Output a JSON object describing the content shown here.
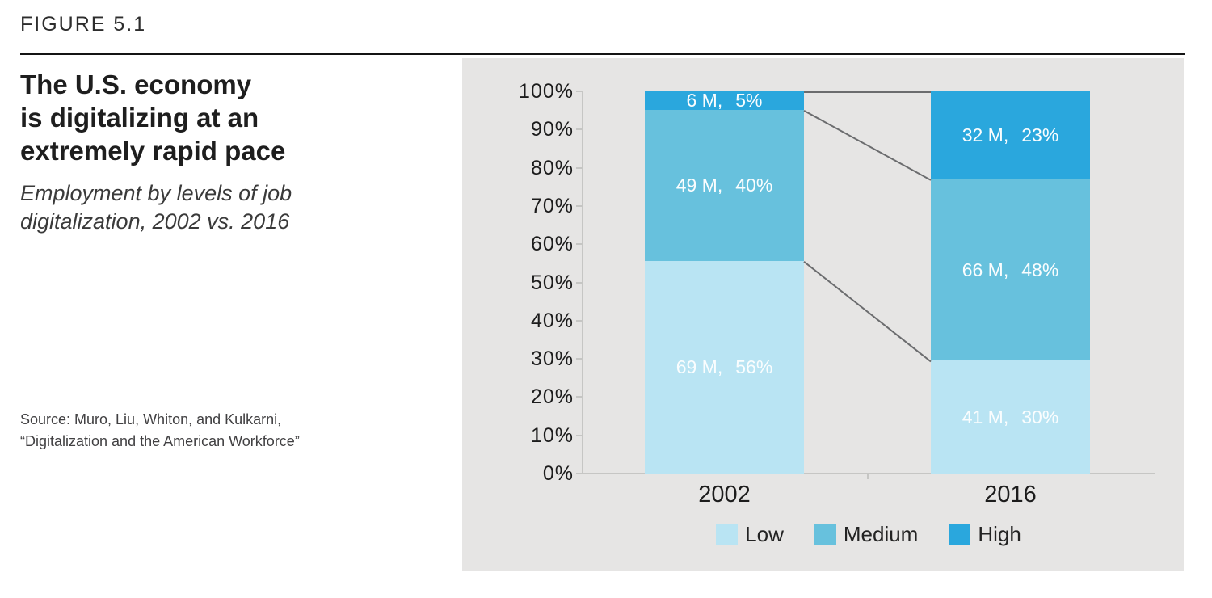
{
  "figure": {
    "label": "FIGURE 5.1"
  },
  "heading": {
    "title": "The U.S. economy\nis digitalizing at an\nextremely rapid pace",
    "subtitle": "Employment by levels of job\ndigitalization, 2002 vs. 2016"
  },
  "source": {
    "text": "Source: Muro, Liu, Whiton, and Kulkarni,\n“Digitalization and the American Workforce”"
  },
  "colors": {
    "panel_background": "#e6e5e4",
    "axis": "#c6c6c4",
    "connector_line": "#6b6c6e",
    "segment_label_text": "#fafdfe",
    "low": "#b9e4f3",
    "medium": "#67c1dd",
    "high": "#2aa7dd"
  },
  "chart_data": {
    "type": "bar",
    "variant": "100%-stacked-column",
    "title": "The U.S. economy is digitalizing at an extremely rapid pace",
    "subtitle": "Employment by levels of job digitalization, 2002 vs. 2016",
    "categories": [
      "2002",
      "2016"
    ],
    "series": [
      {
        "name": "Low",
        "color": "#b9e4f3",
        "values_millions": [
          69,
          41
        ],
        "values_percent": [
          56,
          30
        ],
        "labels": [
          {
            "m": "69 M,",
            "pct": "56%"
          },
          {
            "m": "41 M,",
            "pct": "30%"
          }
        ]
      },
      {
        "name": "Medium",
        "color": "#67c1dd",
        "values_millions": [
          49,
          66
        ],
        "values_percent": [
          40,
          48
        ],
        "labels": [
          {
            "m": "49 M,",
            "pct": "40%"
          },
          {
            "m": "66 M,",
            "pct": "48%"
          }
        ]
      },
      {
        "name": "High",
        "color": "#2aa7dd",
        "values_millions": [
          6,
          32
        ],
        "values_percent": [
          5,
          23
        ],
        "labels": [
          {
            "m": "6 M,",
            "pct": "5%"
          },
          {
            "m": "32 M,",
            "pct": "23%"
          }
        ]
      }
    ],
    "y_axis": {
      "min": 0,
      "max": 100,
      "tick_step": 10,
      "ticks": [
        "0%",
        "10%",
        "20%",
        "30%",
        "40%",
        "50%",
        "60%",
        "70%",
        "80%",
        "90%",
        "100%"
      ]
    },
    "legend": {
      "position": "bottom",
      "items": [
        "Low",
        "Medium",
        "High"
      ]
    },
    "grid": false,
    "connector_lines": true
  }
}
